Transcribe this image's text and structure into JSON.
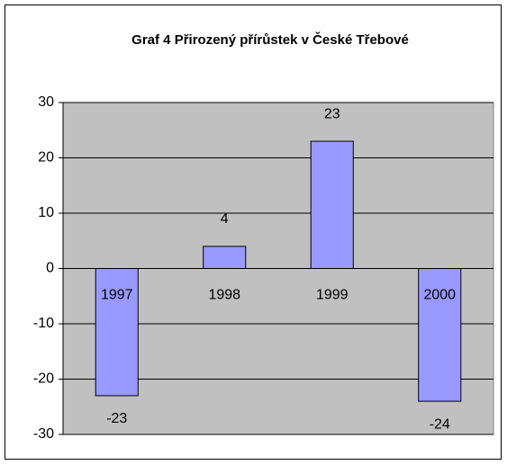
{
  "chart_data": {
    "type": "bar",
    "title": "Graf 4  Přirozený přírůstek v České Třebové",
    "categories": [
      "1997",
      "1998",
      "1999",
      "2000"
    ],
    "values": [
      -23,
      4,
      23,
      -24
    ],
    "color": "#9999ff",
    "ylim": [
      -30,
      30
    ],
    "yticks": [
      -30,
      -20,
      -10,
      0,
      10,
      20,
      30
    ],
    "grid": true
  }
}
